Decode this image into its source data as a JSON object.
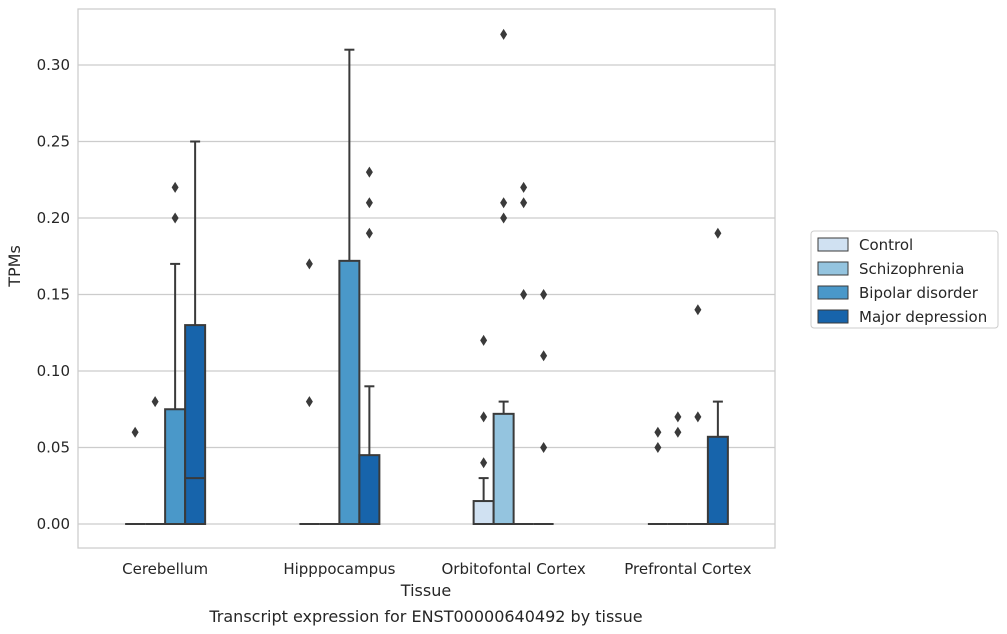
{
  "chart_data": {
    "type": "box",
    "title": "",
    "caption": "Transcript expression for ENST00000640492 by tissue",
    "xlabel": "Tissue",
    "ylabel": "TPMs",
    "ylim": [
      -0.016,
      0.338
    ],
    "yticks": [
      0.0,
      0.05,
      0.1,
      0.15,
      0.2,
      0.25,
      0.3
    ],
    "ytick_labels": [
      "0.00",
      "0.05",
      "0.10",
      "0.15",
      "0.20",
      "0.25",
      "0.30"
    ],
    "grid": true,
    "legend_position": "right-center",
    "categories": [
      "Cerebellum",
      "Hipppocampus",
      "Orbitofontal Cortex",
      "Prefrontal Cortex"
    ],
    "series": [
      {
        "name": "Control",
        "color": "#d0e1f2",
        "boxes": [
          {
            "q1": 0,
            "median": 0,
            "q3": 0,
            "whisker_low": 0,
            "whisker_high": 0,
            "outliers": [
              0.06
            ]
          },
          {
            "q1": 0,
            "median": 0,
            "q3": 0,
            "whisker_low": 0,
            "whisker_high": 0,
            "outliers": [
              0.08,
              0.17
            ]
          },
          {
            "q1": 0,
            "median": 0,
            "q3": 0.015,
            "whisker_low": 0,
            "whisker_high": 0.03,
            "outliers": [
              0.04,
              0.07,
              0.12
            ]
          },
          {
            "q1": 0,
            "median": 0,
            "q3": 0,
            "whisker_low": 0,
            "whisker_high": 0,
            "outliers": [
              0.05,
              0.06
            ]
          }
        ]
      },
      {
        "name": "Schizophrenia",
        "color": "#94c4df",
        "boxes": [
          {
            "q1": 0,
            "median": 0,
            "q3": 0,
            "whisker_low": 0,
            "whisker_high": 0,
            "outliers": [
              0.08
            ]
          },
          {
            "q1": 0,
            "median": 0,
            "q3": 0,
            "whisker_low": 0,
            "whisker_high": 0,
            "outliers": []
          },
          {
            "q1": 0,
            "median": 0,
            "q3": 0.072,
            "whisker_low": 0,
            "whisker_high": 0.08,
            "outliers": [
              0.2,
              0.21,
              0.32
            ]
          },
          {
            "q1": 0,
            "median": 0,
            "q3": 0,
            "whisker_low": 0,
            "whisker_high": 0,
            "outliers": [
              0.06,
              0.07
            ]
          }
        ]
      },
      {
        "name": "Bipolar disorder",
        "color": "#4a98c9",
        "boxes": [
          {
            "q1": 0,
            "median": 0,
            "q3": 0.075,
            "whisker_low": 0,
            "whisker_high": 0.17,
            "outliers": [
              0.2,
              0.22
            ]
          },
          {
            "q1": 0,
            "median": 0,
            "q3": 0.172,
            "whisker_low": 0,
            "whisker_high": 0.31,
            "outliers": []
          },
          {
            "q1": 0,
            "median": 0,
            "q3": 0,
            "whisker_low": 0,
            "whisker_high": 0,
            "outliers": [
              0.15,
              0.21,
              0.22
            ]
          },
          {
            "q1": 0,
            "median": 0,
            "q3": 0,
            "whisker_low": 0,
            "whisker_high": 0,
            "outliers": [
              0.07,
              0.14
            ]
          }
        ]
      },
      {
        "name": "Major depression",
        "color": "#1764ab",
        "boxes": [
          {
            "q1": 0,
            "median": 0.03,
            "q3": 0.13,
            "whisker_low": 0,
            "whisker_high": 0.25,
            "outliers": []
          },
          {
            "q1": 0,
            "median": 0,
            "q3": 0.045,
            "whisker_low": 0,
            "whisker_high": 0.09,
            "outliers": [
              0.19,
              0.21,
              0.23
            ]
          },
          {
            "q1": 0,
            "median": 0,
            "q3": 0,
            "whisker_low": 0,
            "whisker_high": 0,
            "outliers": [
              0.05,
              0.11,
              0.15
            ]
          },
          {
            "q1": 0,
            "median": 0,
            "q3": 0.057,
            "whisker_low": 0,
            "whisker_high": 0.08,
            "outliers": [
              0.19
            ]
          }
        ]
      }
    ]
  }
}
